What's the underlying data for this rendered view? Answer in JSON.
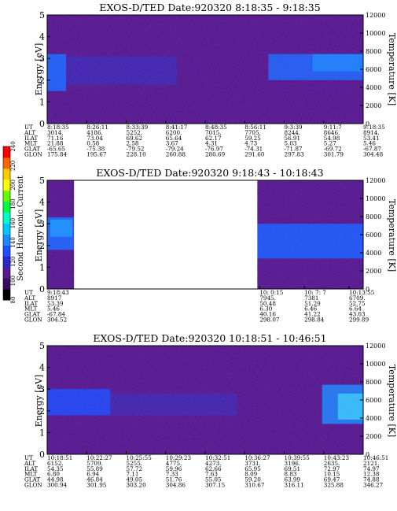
{
  "colors": {
    "background": "#5a1b8e",
    "colorbar": [
      "#000000",
      "#3a0a5e",
      "#5a1b8e",
      "#2a28c8",
      "#1e50ff",
      "#1e8cff",
      "#00c8ff",
      "#00ffcc",
      "#00ff44",
      "#66ff00",
      "#ffff00",
      "#ffcc00",
      "#ff6600",
      "#ff0000"
    ]
  },
  "colorbar": {
    "label": "Second Harmonic Current",
    "ticks": [
      "80",
      "100",
      "120",
      "140",
      "160",
      "180",
      "200",
      "220",
      "240"
    ]
  },
  "chart_data": [
    {
      "type": "heatmap",
      "title": "EXOS-D/TED   Date:920320  8:18:35 - 9:18:35",
      "ylabel": "Energy [eV]",
      "ylabel_right": "Temperature [K]",
      "ylim": [
        0,
        5
      ],
      "ylim_right": [
        0,
        12000
      ],
      "yticks": [
        "0",
        "1",
        "2",
        "3",
        "4",
        "5"
      ],
      "yticks_right": [
        "0",
        "2000",
        "4000",
        "6000",
        "8000",
        "10000",
        "12000"
      ],
      "gap": null,
      "columns": [
        "8:18:35",
        "8:26:11",
        "8:33:39",
        "8:41:17",
        "8:48:35",
        "8:56:11",
        "9:3:39",
        "9:11:7",
        "9:18:35"
      ],
      "rows": [
        {
          "label": "UT",
          "values": [
            "8:18:35",
            "8:26:11",
            "8:33:39",
            "8:41:17",
            "8:48:35",
            "8:56:11",
            "9:3:39",
            "9:11:7",
            "9:18:35"
          ]
        },
        {
          "label": "ALT",
          "values": [
            "3014.",
            "4186.",
            "5252.",
            "6200.",
            "7015.",
            "7705.",
            "8244.",
            "8646.",
            "8914."
          ]
        },
        {
          "label": "ILAT",
          "values": [
            "71.16",
            "73.04",
            "69.62",
            "65.64",
            "62.17",
            "59.25",
            "56.91",
            "54.98",
            "53.41"
          ]
        },
        {
          "label": "MLT",
          "values": [
            "21.88",
            "0.58",
            "2.58",
            "3.67",
            "4.31",
            "4.73",
            "5.03",
            "5.27",
            "5.46"
          ]
        },
        {
          "label": "GLAT",
          "values": [
            "-65.65",
            "-75.38",
            "-79.52",
            "-79.24",
            "-76.97",
            "-74.31",
            "-71.87",
            "-69.72",
            "-67.87"
          ]
        },
        {
          "label": "GLON",
          "values": [
            "175.84",
            "195.67",
            "228.10",
            "260.88",
            "280.69",
            "291.60",
            "297.83",
            "301.79",
            "304.48"
          ]
        }
      ]
    },
    {
      "type": "heatmap",
      "title": "EXOS-D/TED   Date:920320  9:18:43 - 10:18:43",
      "ylabel": "Energy [eV]",
      "ylabel_right": "Temperature [K]",
      "ylim": [
        0,
        5
      ],
      "ylim_right": [
        0,
        12000
      ],
      "yticks": [
        "0",
        "1",
        "2",
        "3",
        "4",
        "5"
      ],
      "yticks_right": [
        "0",
        "2000",
        "4000",
        "6000",
        "8000",
        "10000",
        "12000"
      ],
      "gap": [
        0.085,
        0.665
      ],
      "columns": [
        "9:18:43",
        "10: 0:15",
        "10: 7: 7",
        "10:13:55"
      ],
      "rows": [
        {
          "label": "UT",
          "values": [
            "9:18:43",
            "10: 0:15",
            "10: 7: 7",
            "10:13:55"
          ]
        },
        {
          "label": "ALT",
          "values": [
            "8917",
            "7945.",
            "7381",
            "6709."
          ]
        },
        {
          "label": "ILAT",
          "values": [
            "53.39",
            "50.48",
            "51.29",
            "52.75"
          ]
        },
        {
          "label": "MLT",
          "values": [
            "5.46",
            "6.30",
            "6.46",
            "6.64"
          ]
        },
        {
          "label": "GLAT",
          "values": [
            "-67.84",
            "40.16",
            "41.22",
            "43.03"
          ]
        },
        {
          "label": "GLON",
          "values": [
            "304.52",
            "298.07",
            "298.84",
            "299.89"
          ]
        }
      ]
    },
    {
      "type": "heatmap",
      "title": "EXOS-D/TED   Date:920320  10:18:51 - 10:46:51",
      "ylabel": "Energy [eV]",
      "ylabel_right": "Temperature [K]",
      "ylim": [
        0,
        5
      ],
      "ylim_right": [
        0,
        12000
      ],
      "yticks": [
        "0",
        "1",
        "2",
        "3",
        "4",
        "5"
      ],
      "yticks_right": [
        "0",
        "2000",
        "4000",
        "6000",
        "8000",
        "10000",
        "12000"
      ],
      "gap": null,
      "columns": [
        "10:18:51",
        "10:22:27",
        "10:25:55",
        "10:29:23",
        "10:32:51",
        "10:36:27",
        "10:39:55",
        "10:43:23",
        "10:46:51"
      ],
      "rows": [
        {
          "label": "UT",
          "values": [
            "10:18:51",
            "10:22:27",
            "10:25:55",
            "10:29:23",
            "10:32:51",
            "10:36:27",
            "10:39:55",
            "10:43:23",
            "10:46:51"
          ]
        },
        {
          "label": "ALT",
          "values": [
            "6152.",
            "5709.",
            "5255.",
            "4775.",
            "4273.",
            "3731.",
            "3196.",
            "2635.",
            "2121."
          ]
        },
        {
          "label": "ILAT",
          "values": [
            "54.35",
            "55.89",
            "57.72",
            "59.96",
            "62.66",
            "65.95",
            "69.51",
            "72.97",
            "74.97"
          ]
        },
        {
          "label": "MLT",
          "values": [
            "6.80",
            "6.94",
            "7.11",
            "7.33",
            "7.63",
            "8.09",
            "8.83",
            "10.15",
            "12.38"
          ]
        },
        {
          "label": "GLAT",
          "values": [
            "44.98",
            "46.84",
            "49.05",
            "51.76",
            "55.05",
            "59.20",
            "63.99",
            "69.47",
            "74.88"
          ]
        },
        {
          "label": "GLON",
          "values": [
            "300.94",
            "301.95",
            "303.20",
            "304.86",
            "307.15",
            "310.67",
            "316.11",
            "325.88",
            "346.27"
          ]
        }
      ]
    }
  ]
}
